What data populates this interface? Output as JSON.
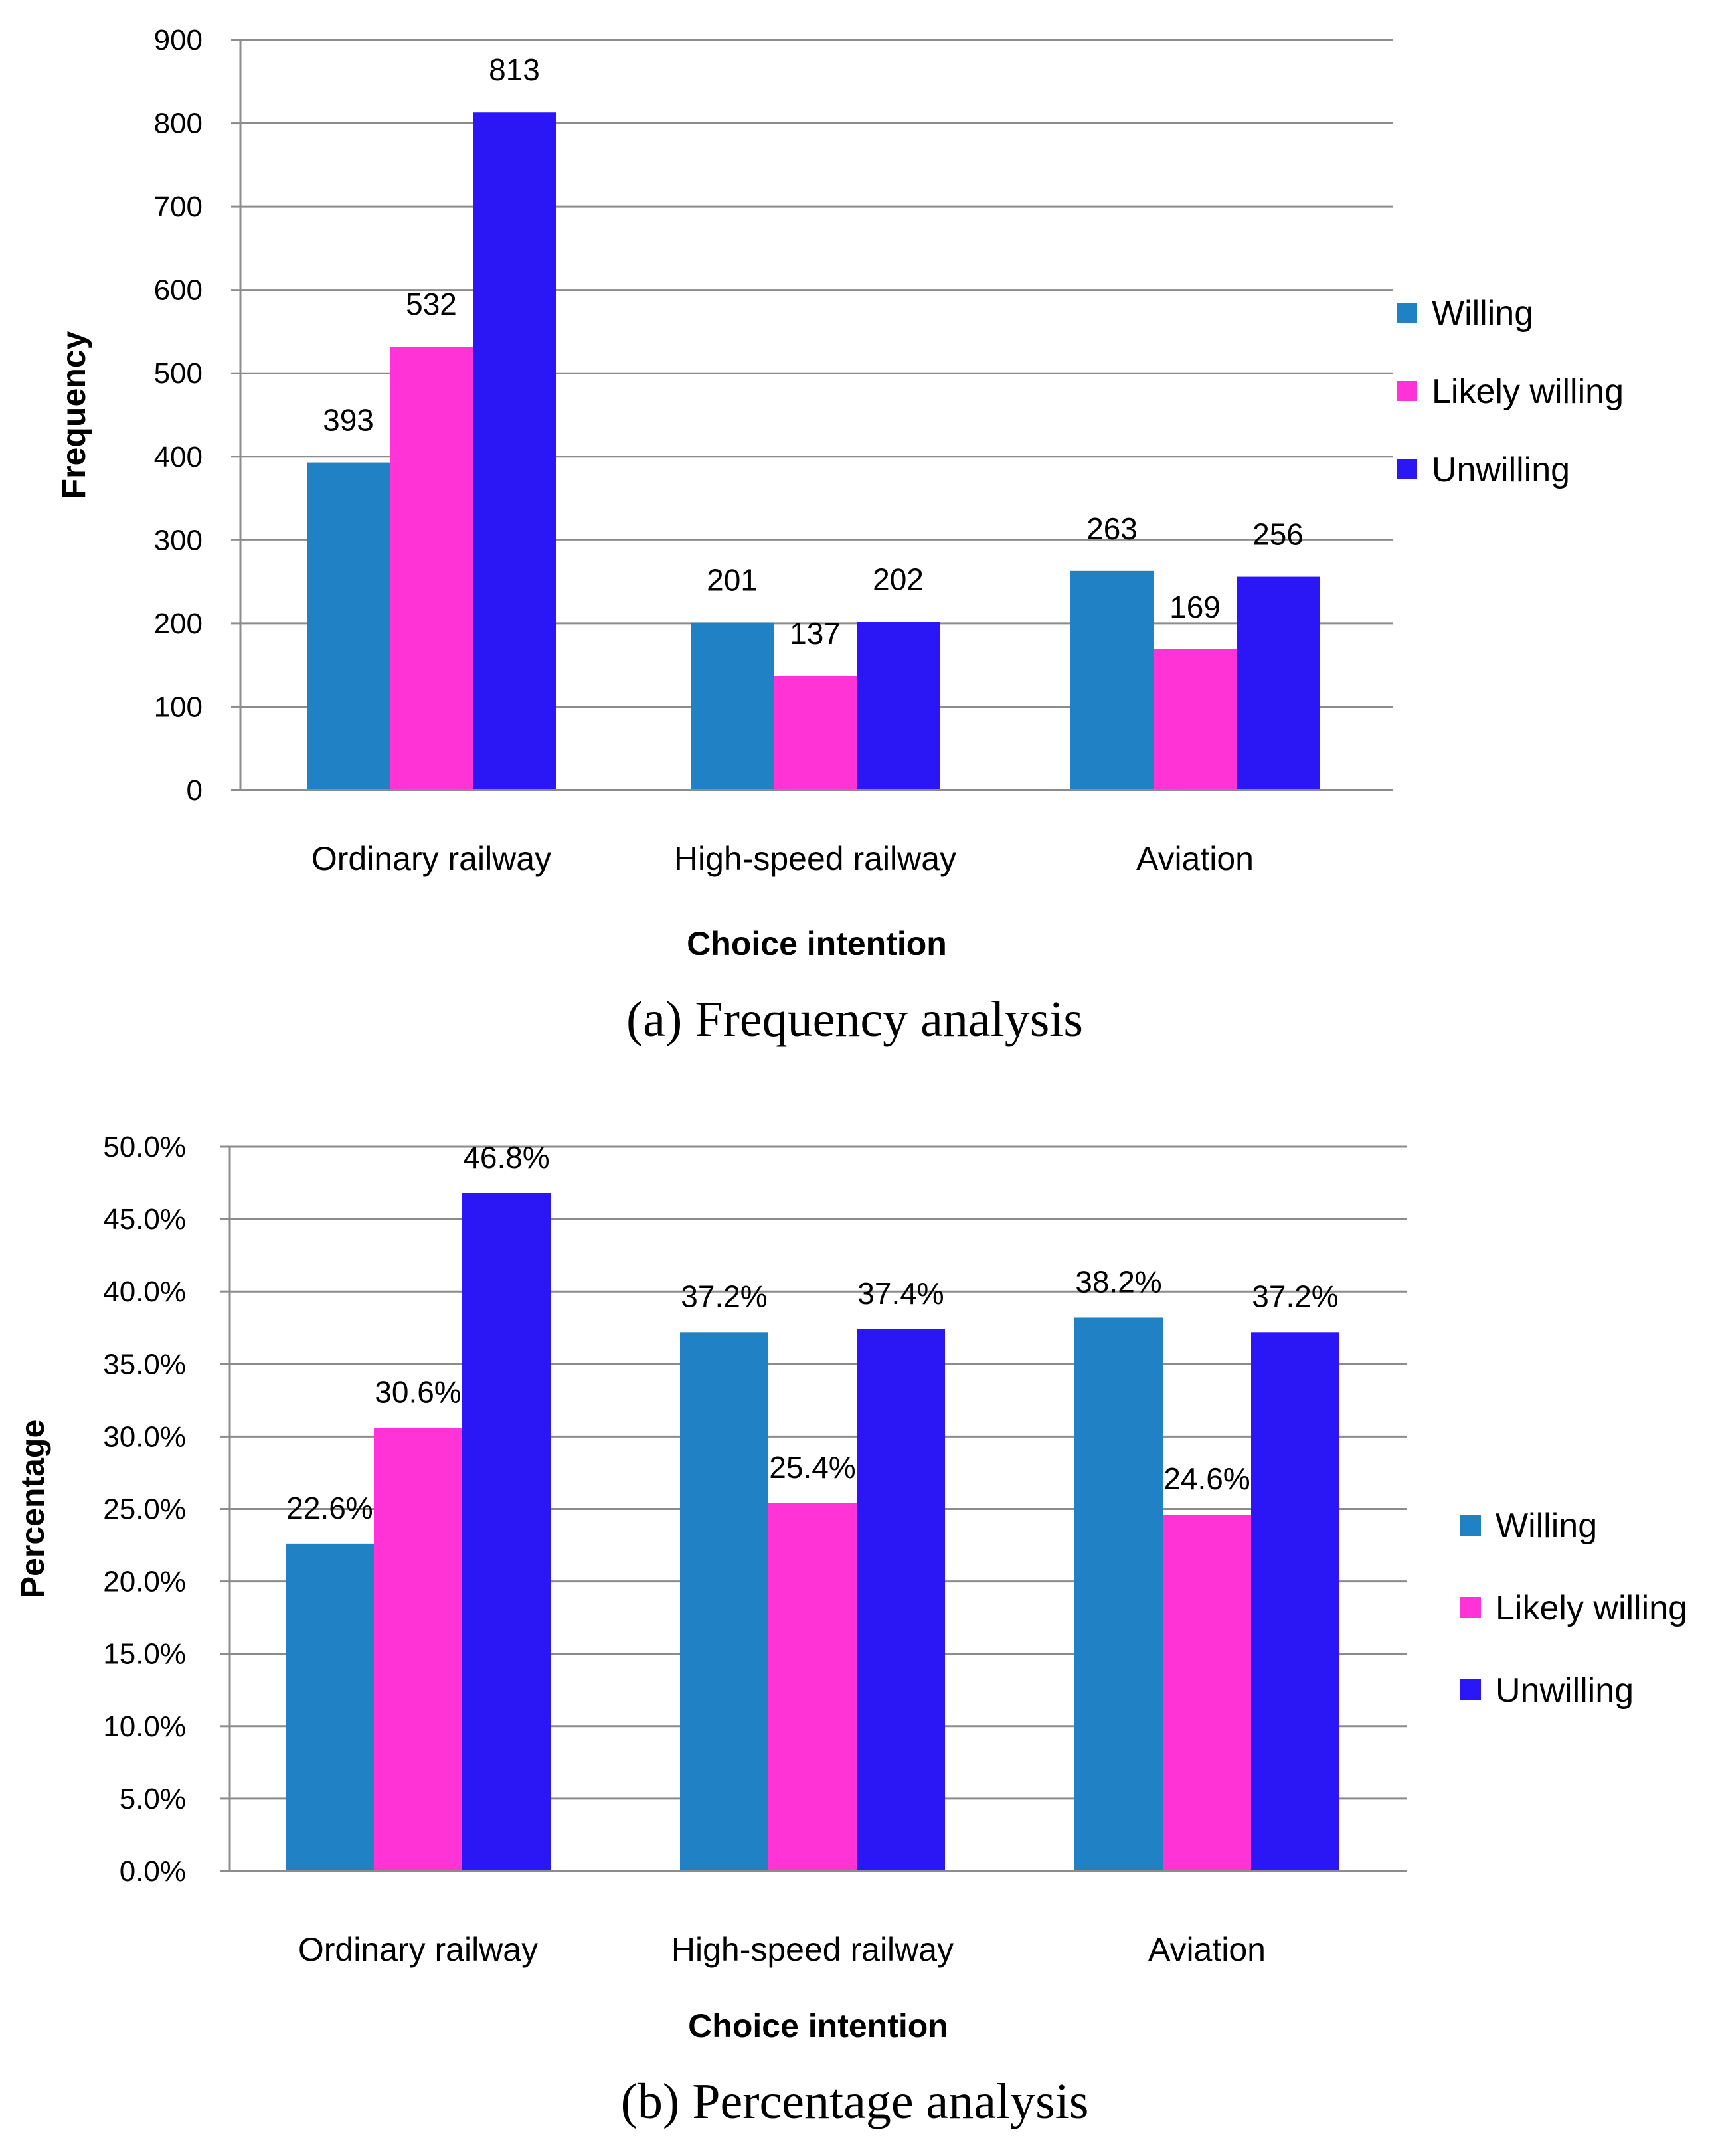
{
  "chart_data": [
    {
      "type": "bar",
      "title": "",
      "caption": "(a) Frequency analysis",
      "xlabel": "Choice intention",
      "ylabel": "Frequency",
      "categories": [
        "Ordinary railway",
        "High-speed railway",
        "Aviation"
      ],
      "series": [
        {
          "name": "Willing",
          "color": "#2082C4",
          "values": [
            393,
            201,
            263
          ],
          "labels": [
            "393",
            "201",
            "263"
          ]
        },
        {
          "name": "Likely willing",
          "color": "#FF33D6",
          "values": [
            532,
            137,
            169
          ],
          "labels": [
            "532",
            "137",
            "169"
          ]
        },
        {
          "name": "Unwilling",
          "color": "#2B16F6",
          "values": [
            813,
            202,
            256
          ],
          "labels": [
            "813",
            "202",
            "256"
          ]
        }
      ],
      "ylim": [
        0,
        900
      ],
      "yticks": [
        0,
        100,
        200,
        300,
        400,
        500,
        600,
        700,
        800,
        900
      ],
      "ytick_labels": [
        "0",
        "100",
        "200",
        "300",
        "400",
        "500",
        "600",
        "700",
        "800",
        "900"
      ],
      "grid": true,
      "legend": "right"
    },
    {
      "type": "bar",
      "title": "",
      "caption": "(b) Percentage analysis",
      "xlabel": "Choice intention",
      "ylabel": "Percentage",
      "categories": [
        "Ordinary railway",
        "High-speed railway",
        "Aviation"
      ],
      "series": [
        {
          "name": "Willing",
          "color": "#2082C4",
          "values": [
            22.6,
            37.2,
            38.2
          ],
          "labels": [
            "22.6%",
            "37.2%",
            "38.2%"
          ]
        },
        {
          "name": "Likely willing",
          "color": "#FF33D6",
          "values": [
            30.6,
            25.4,
            24.6
          ],
          "labels": [
            "30.6%",
            "25.4%",
            "24.6%"
          ]
        },
        {
          "name": "Unwilling",
          "color": "#2B16F6",
          "values": [
            46.8,
            37.4,
            37.2
          ],
          "labels": [
            "46.8%",
            "37.4%",
            "37.2%"
          ]
        }
      ],
      "ylim": [
        0,
        50
      ],
      "yticks": [
        0,
        5,
        10,
        15,
        20,
        25,
        30,
        35,
        40,
        45,
        50
      ],
      "ytick_labels": [
        "0.0%",
        "5.0%",
        "10.0%",
        "15.0%",
        "20.0%",
        "25.0%",
        "30.0%",
        "35.0%",
        "40.0%",
        "45.0%",
        "50.0%"
      ],
      "grid": true,
      "legend": "right"
    }
  ]
}
